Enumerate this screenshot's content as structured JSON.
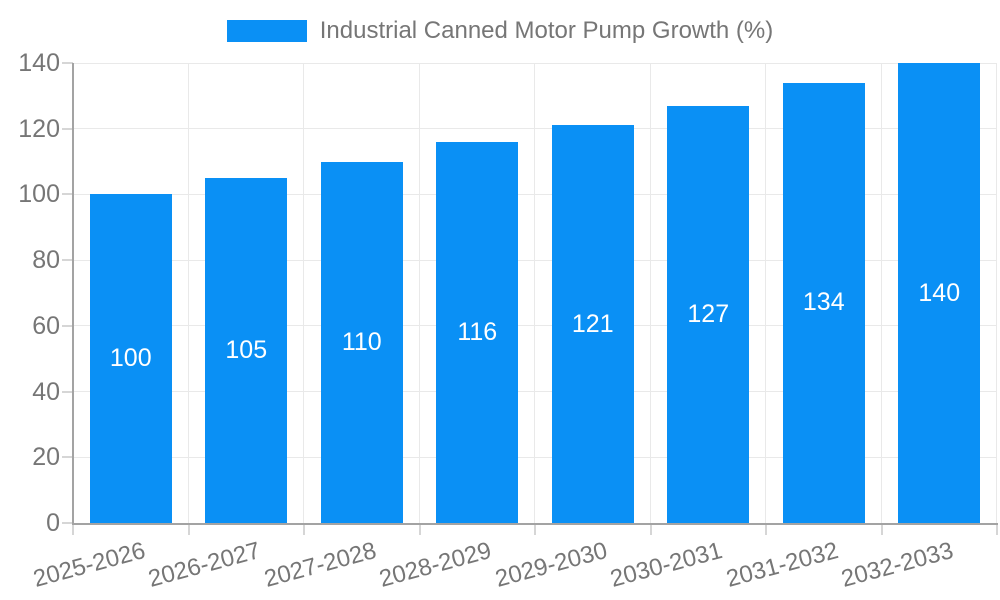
{
  "legend": {
    "label": "Industrial Canned Motor Pump Growth (%)"
  },
  "chart_data": {
    "type": "bar",
    "title": "Industrial Canned Motor Pump Growth (%)",
    "categories": [
      "2025-2026",
      "2026-2027",
      "2027-2028",
      "2028-2029",
      "2029-2030",
      "2030-2031",
      "2031-2032",
      "2032-2033"
    ],
    "values": [
      100,
      105,
      110,
      116,
      121,
      127,
      134,
      140
    ],
    "bar_labels": [
      "100",
      "105",
      "110",
      "116",
      "121",
      "127",
      "134",
      "140"
    ],
    "xlabel": "",
    "ylabel": "",
    "ylim": [
      0,
      140
    ],
    "yticks": [
      0,
      20,
      40,
      60,
      80,
      100,
      120,
      140
    ],
    "grid": true,
    "legend_position": "top",
    "x_label_rotation_deg": -15,
    "colors": {
      "bar": "#0a90f5",
      "bar_label": "#ffffff",
      "axis_text": "#767676",
      "grid": "#e9e9e9",
      "axis_line": "#a3a3a3",
      "tick": "#d6d6d6",
      "background": "#ffffff"
    }
  }
}
